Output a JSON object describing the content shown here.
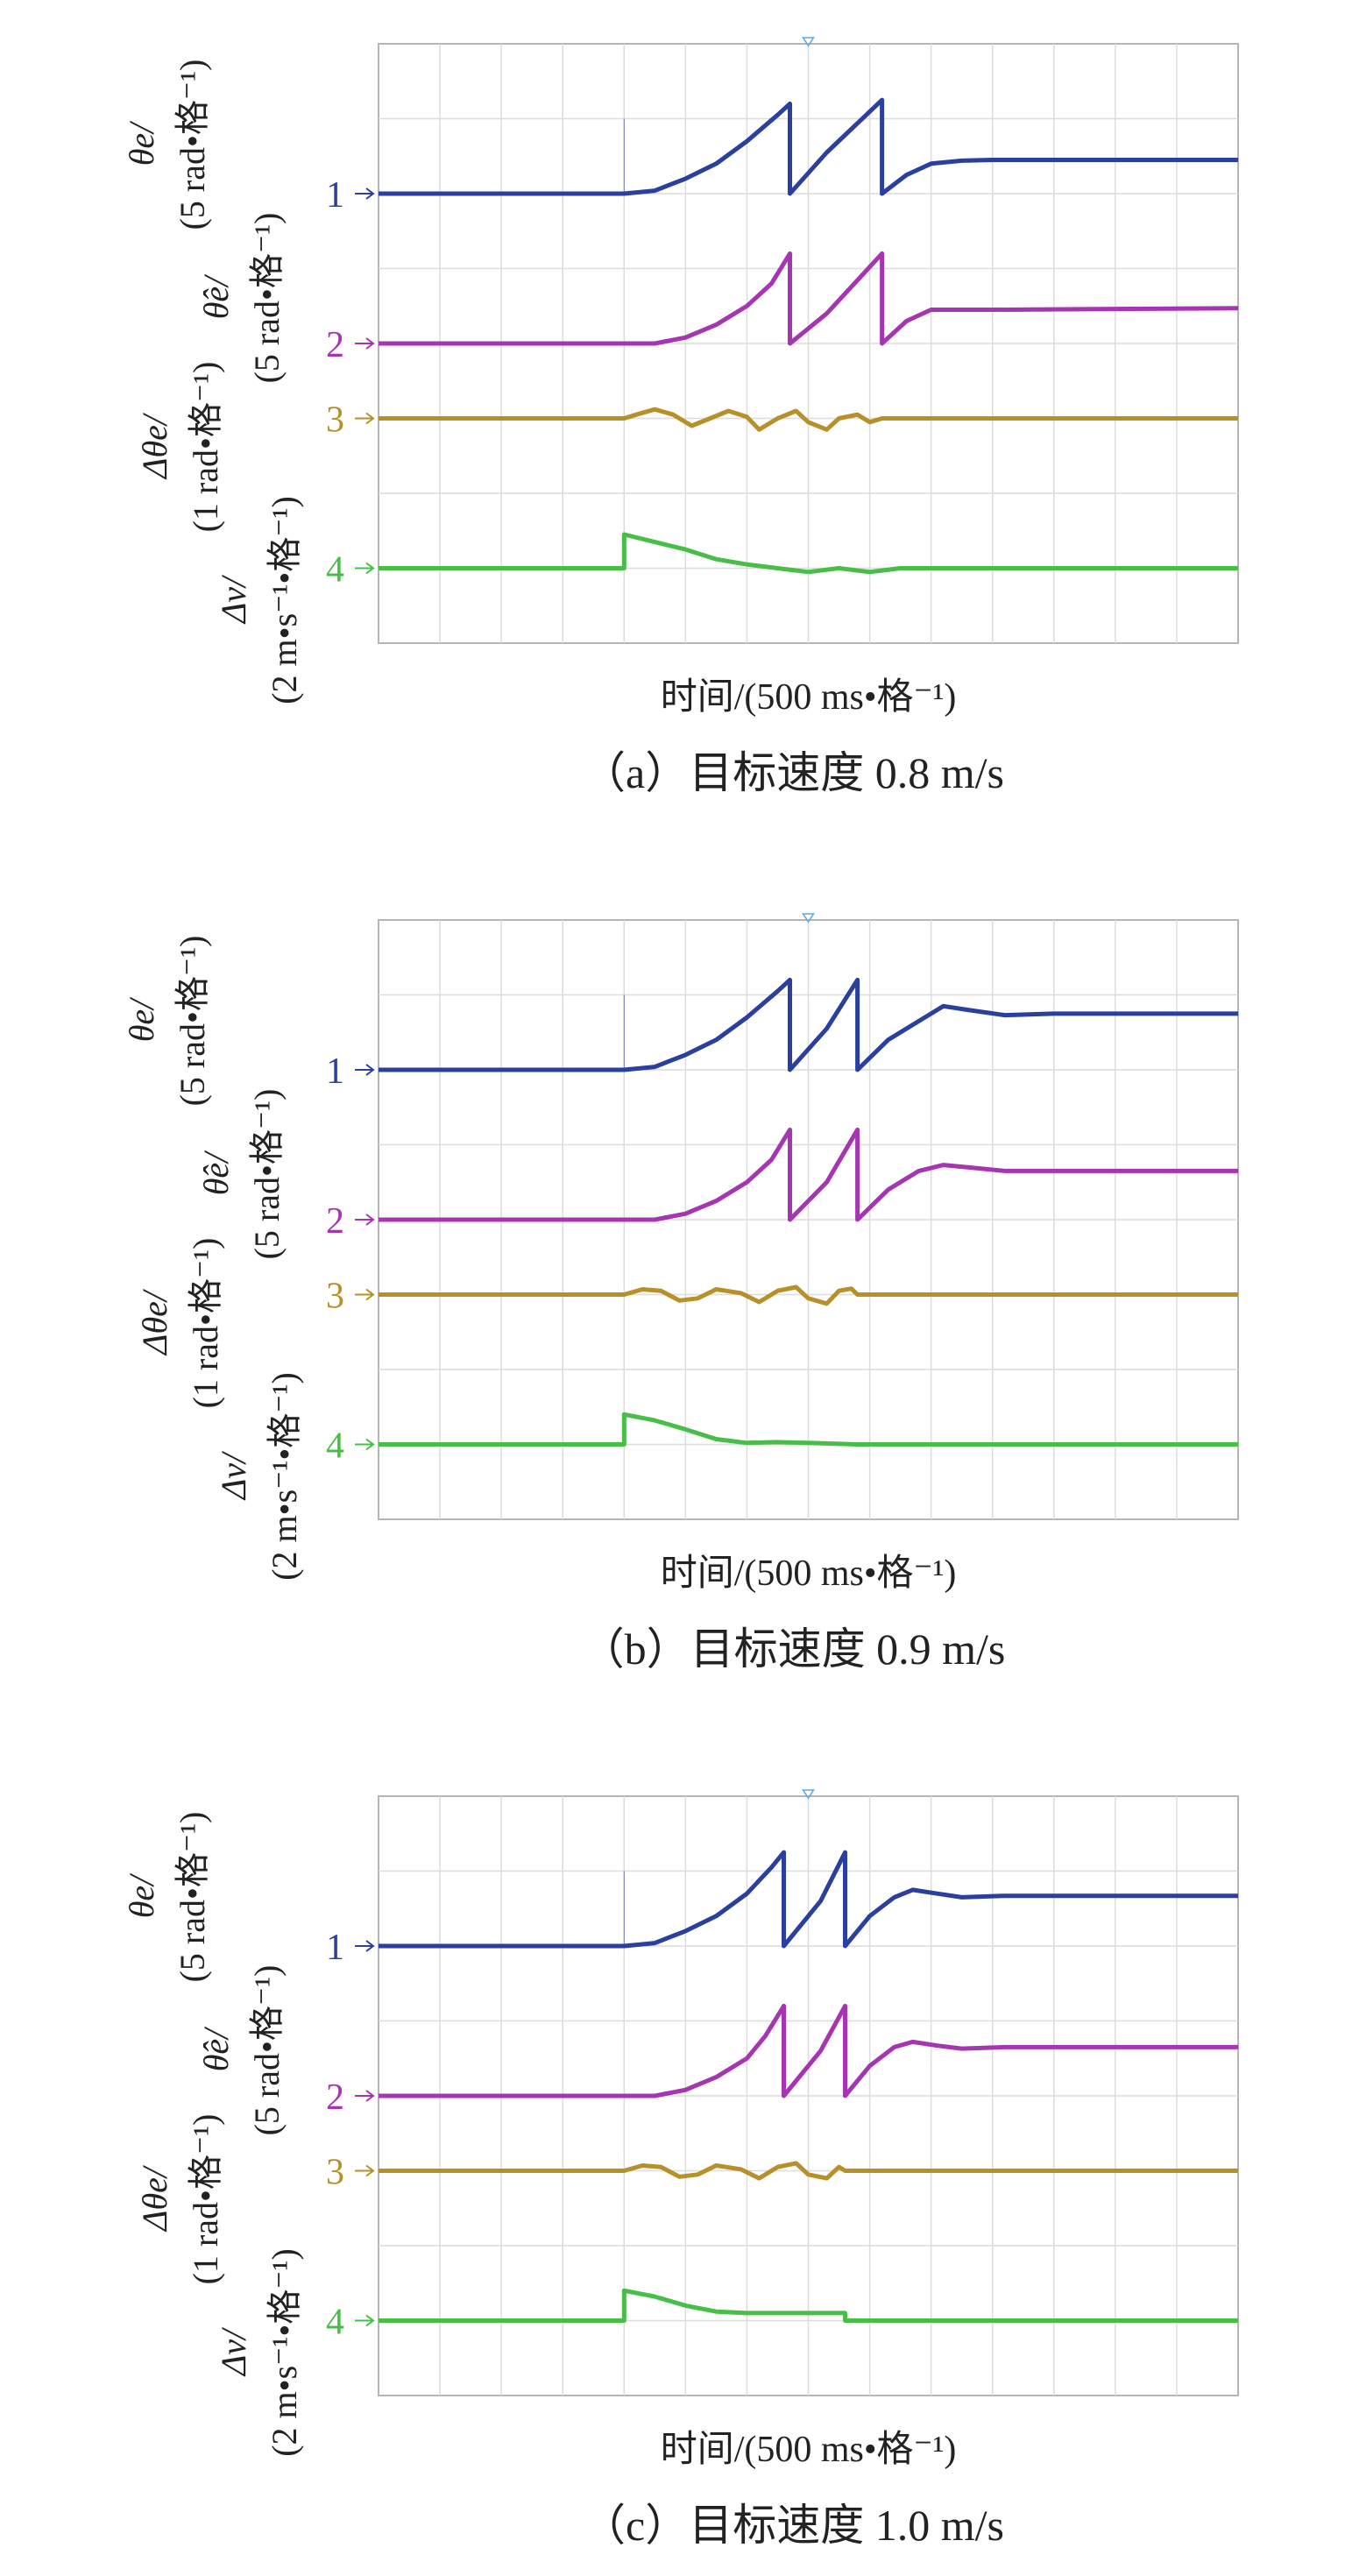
{
  "figure": {
    "axis_labels": {
      "theta_e": {
        "name": "θe/",
        "unit": "(5 rad•格⁻¹)"
      },
      "theta_e_hat": {
        "name": "θ̂e/",
        "unit": "(5 rad•格⁻¹)"
      },
      "delta_theta_e": {
        "name": "Δθe/",
        "unit": "(1 rad•格⁻¹)"
      },
      "delta_v": {
        "name": "Δv/",
        "unit": "(2 m•s⁻¹•格⁻¹)"
      }
    },
    "xlabel": "时间/(500 ms•格⁻¹)"
  },
  "chart_data": [
    {
      "type": "line",
      "caption": "（a）目标速度 0.8 m/s",
      "title": "（a）目标速度 0.8 m/s",
      "xlabel": "时间/(500 ms•格⁻¹)",
      "x_divisions": 14,
      "y_divisions": 8,
      "x_unit": "div",
      "y_unit": "div",
      "channel_labels": [
        "1",
        "2",
        "3",
        "4"
      ],
      "baselines": [
        2.0,
        4.0,
        5.0,
        7.0
      ],
      "series": [
        {
          "name": "θe",
          "channel": "1",
          "color": "#2a3f9e",
          "points": [
            [
              0,
              2.0
            ],
            [
              4.0,
              2.0
            ],
            [
              4.5,
              1.96
            ],
            [
              5.0,
              1.8
            ],
            [
              5.5,
              1.6
            ],
            [
              6.0,
              1.3
            ],
            [
              6.5,
              0.95
            ],
            [
              6.7,
              0.8
            ],
            [
              6.7,
              2.0
            ],
            [
              7.3,
              1.45
            ],
            [
              8.2,
              0.75
            ],
            [
              8.2,
              2.0
            ],
            [
              8.6,
              1.75
            ],
            [
              9.0,
              1.6
            ],
            [
              9.5,
              1.56
            ],
            [
              10,
              1.55
            ],
            [
              12,
              1.55
            ],
            [
              14,
              1.55
            ]
          ]
        },
        {
          "name": "θ̂e",
          "channel": "2",
          "color": "#a535b0",
          "points": [
            [
              0,
              4.0
            ],
            [
              4.5,
              4.0
            ],
            [
              5.0,
              3.92
            ],
            [
              5.5,
              3.75
            ],
            [
              6.0,
              3.5
            ],
            [
              6.4,
              3.2
            ],
            [
              6.7,
              2.8
            ],
            [
              6.7,
              4.0
            ],
            [
              7.3,
              3.6
            ],
            [
              8.2,
              2.8
            ],
            [
              8.2,
              4.0
            ],
            [
              8.6,
              3.7
            ],
            [
              9.0,
              3.55
            ],
            [
              10,
              3.55
            ],
            [
              14,
              3.53
            ]
          ]
        },
        {
          "name": "Δθe",
          "channel": "3",
          "color": "#b8902a",
          "points": [
            [
              0,
              5.0
            ],
            [
              4.0,
              5.0
            ],
            [
              4.2,
              4.95
            ],
            [
              4.5,
              4.88
            ],
            [
              4.8,
              4.95
            ],
            [
              5.1,
              5.1
            ],
            [
              5.4,
              5.0
            ],
            [
              5.7,
              4.9
            ],
            [
              6.0,
              4.98
            ],
            [
              6.2,
              5.15
            ],
            [
              6.5,
              5.0
            ],
            [
              6.8,
              4.9
            ],
            [
              7.0,
              5.05
            ],
            [
              7.3,
              5.15
            ],
            [
              7.5,
              5.0
            ],
            [
              7.8,
              4.95
            ],
            [
              8.0,
              5.05
            ],
            [
              8.2,
              5.0
            ],
            [
              14,
              5.0
            ]
          ]
        },
        {
          "name": "Δv",
          "channel": "4",
          "color": "#48bd48",
          "points": [
            [
              0,
              7.0
            ],
            [
              4.0,
              7.0
            ],
            [
              4.0,
              6.55
            ],
            [
              4.5,
              6.65
            ],
            [
              5.0,
              6.75
            ],
            [
              5.5,
              6.88
            ],
            [
              6.0,
              6.95
            ],
            [
              6.5,
              7.0
            ],
            [
              7.0,
              7.05
            ],
            [
              7.5,
              7.0
            ],
            [
              8.0,
              7.05
            ],
            [
              8.5,
              7.0
            ],
            [
              14,
              7.0
            ]
          ]
        }
      ]
    },
    {
      "type": "line",
      "caption": "（b）目标速度 0.9 m/s",
      "title": "（b）目标速度 0.9 m/s",
      "xlabel": "时间/(500 ms•格⁻¹)",
      "x_divisions": 14,
      "y_divisions": 8,
      "x_unit": "div",
      "y_unit": "div",
      "channel_labels": [
        "1",
        "2",
        "3",
        "4"
      ],
      "baselines": [
        2.0,
        4.0,
        5.0,
        7.0
      ],
      "series": [
        {
          "name": "θe",
          "channel": "1",
          "color": "#2a3f9e",
          "points": [
            [
              0,
              2.0
            ],
            [
              4.0,
              2.0
            ],
            [
              4.5,
              1.96
            ],
            [
              5.0,
              1.8
            ],
            [
              5.5,
              1.6
            ],
            [
              6.0,
              1.3
            ],
            [
              6.5,
              0.95
            ],
            [
              6.7,
              0.8
            ],
            [
              6.7,
              2.0
            ],
            [
              7.3,
              1.45
            ],
            [
              7.8,
              0.8
            ],
            [
              7.8,
              2.0
            ],
            [
              8.3,
              1.6
            ],
            [
              8.8,
              1.35
            ],
            [
              9.2,
              1.15
            ],
            [
              9.6,
              1.2
            ],
            [
              10.2,
              1.27
            ],
            [
              11,
              1.25
            ],
            [
              14,
              1.25
            ]
          ]
        },
        {
          "name": "θ̂e",
          "channel": "2",
          "color": "#a535b0",
          "points": [
            [
              0,
              4.0
            ],
            [
              4.5,
              4.0
            ],
            [
              5.0,
              3.92
            ],
            [
              5.5,
              3.75
            ],
            [
              6.0,
              3.5
            ],
            [
              6.4,
              3.2
            ],
            [
              6.7,
              2.8
            ],
            [
              6.7,
              4.0
            ],
            [
              7.3,
              3.5
            ],
            [
              7.8,
              2.8
            ],
            [
              7.8,
              4.0
            ],
            [
              8.3,
              3.6
            ],
            [
              8.8,
              3.35
            ],
            [
              9.2,
              3.27
            ],
            [
              9.6,
              3.3
            ],
            [
              10.2,
              3.35
            ],
            [
              14,
              3.35
            ]
          ]
        },
        {
          "name": "Δθe",
          "channel": "3",
          "color": "#b8902a",
          "points": [
            [
              0,
              5.0
            ],
            [
              4.0,
              5.0
            ],
            [
              4.3,
              4.93
            ],
            [
              4.6,
              4.95
            ],
            [
              4.9,
              5.08
            ],
            [
              5.2,
              5.05
            ],
            [
              5.5,
              4.93
            ],
            [
              5.9,
              4.98
            ],
            [
              6.2,
              5.1
            ],
            [
              6.5,
              4.95
            ],
            [
              6.8,
              4.9
            ],
            [
              7.0,
              5.05
            ],
            [
              7.3,
              5.12
            ],
            [
              7.5,
              4.95
            ],
            [
              7.7,
              4.92
            ],
            [
              7.8,
              5.0
            ],
            [
              14,
              5.0
            ]
          ]
        },
        {
          "name": "Δv",
          "channel": "4",
          "color": "#48bd48",
          "points": [
            [
              0,
              7.0
            ],
            [
              4.0,
              7.0
            ],
            [
              4.0,
              6.6
            ],
            [
              4.5,
              6.68
            ],
            [
              5.0,
              6.8
            ],
            [
              5.5,
              6.93
            ],
            [
              6.0,
              6.98
            ],
            [
              6.5,
              6.97
            ],
            [
              7.0,
              6.98
            ],
            [
              7.8,
              7.0
            ],
            [
              14,
              7.0
            ]
          ]
        }
      ]
    },
    {
      "type": "line",
      "caption": "（c）目标速度 1.0 m/s",
      "title": "（c）目标速度 1.0 m/s",
      "xlabel": "时间/(500 ms•格⁻¹)",
      "x_divisions": 14,
      "y_divisions": 8,
      "x_unit": "div",
      "y_unit": "div",
      "channel_labels": [
        "1",
        "2",
        "3",
        "4"
      ],
      "baselines": [
        2.0,
        4.0,
        5.0,
        7.0
      ],
      "series": [
        {
          "name": "θe",
          "channel": "1",
          "color": "#2a3f9e",
          "points": [
            [
              0,
              2.0
            ],
            [
              4.0,
              2.0
            ],
            [
              4.5,
              1.96
            ],
            [
              5.0,
              1.8
            ],
            [
              5.5,
              1.6
            ],
            [
              6.0,
              1.3
            ],
            [
              6.4,
              0.95
            ],
            [
              6.6,
              0.75
            ],
            [
              6.6,
              2.0
            ],
            [
              7.2,
              1.4
            ],
            [
              7.6,
              0.75
            ],
            [
              7.6,
              2.0
            ],
            [
              8.0,
              1.6
            ],
            [
              8.4,
              1.35
            ],
            [
              8.7,
              1.25
            ],
            [
              9.1,
              1.3
            ],
            [
              9.5,
              1.35
            ],
            [
              10.2,
              1.33
            ],
            [
              14,
              1.33
            ]
          ]
        },
        {
          "name": "θ̂e",
          "channel": "2",
          "color": "#a535b0",
          "points": [
            [
              0,
              4.0
            ],
            [
              4.5,
              4.0
            ],
            [
              5.0,
              3.92
            ],
            [
              5.5,
              3.75
            ],
            [
              6.0,
              3.5
            ],
            [
              6.3,
              3.2
            ],
            [
              6.6,
              2.8
            ],
            [
              6.6,
              4.0
            ],
            [
              7.2,
              3.4
            ],
            [
              7.6,
              2.8
            ],
            [
              7.6,
              4.0
            ],
            [
              8.0,
              3.6
            ],
            [
              8.4,
              3.35
            ],
            [
              8.7,
              3.28
            ],
            [
              9.1,
              3.33
            ],
            [
              9.5,
              3.37
            ],
            [
              10.2,
              3.35
            ],
            [
              14,
              3.35
            ]
          ]
        },
        {
          "name": "Δθe",
          "channel": "3",
          "color": "#b8902a",
          "points": [
            [
              0,
              5.0
            ],
            [
              4.0,
              5.0
            ],
            [
              4.3,
              4.93
            ],
            [
              4.6,
              4.95
            ],
            [
              4.9,
              5.08
            ],
            [
              5.2,
              5.05
            ],
            [
              5.5,
              4.93
            ],
            [
              5.9,
              4.98
            ],
            [
              6.2,
              5.1
            ],
            [
              6.5,
              4.95
            ],
            [
              6.8,
              4.9
            ],
            [
              7.0,
              5.05
            ],
            [
              7.3,
              5.1
            ],
            [
              7.5,
              4.95
            ],
            [
              7.6,
              5.0
            ],
            [
              14,
              5.0
            ]
          ]
        },
        {
          "name": "Δv",
          "channel": "4",
          "color": "#48bd48",
          "points": [
            [
              0,
              7.0
            ],
            [
              4.0,
              7.0
            ],
            [
              4.0,
              6.6
            ],
            [
              4.5,
              6.68
            ],
            [
              5.0,
              6.8
            ],
            [
              5.5,
              6.88
            ],
            [
              6.0,
              6.9
            ],
            [
              7.0,
              6.9
            ],
            [
              7.6,
              6.9
            ],
            [
              7.6,
              7.0
            ],
            [
              14,
              7.0
            ]
          ]
        }
      ]
    }
  ]
}
